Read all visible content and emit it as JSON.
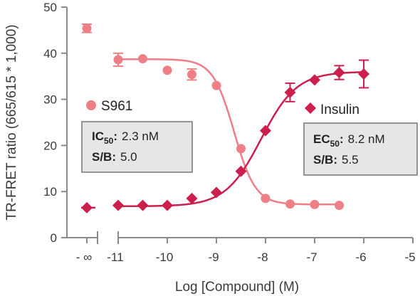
{
  "chart_data": {
    "type": "scatter",
    "xlabel": "Log [Compound] (M)",
    "ylabel": "TR-FRET ratio (665/615 * 1,000)",
    "xlim": [
      -11.7,
      -5
    ],
    "ylim": [
      0,
      50
    ],
    "x_ticks": [
      {
        "value": -11.5,
        "label": "- ∞"
      },
      {
        "value": -11,
        "label": "-11"
      },
      {
        "value": -10,
        "label": "-10"
      },
      {
        "value": -9,
        "label": "-9"
      },
      {
        "value": -8,
        "label": "-8"
      },
      {
        "value": -7,
        "label": "-7"
      },
      {
        "value": -6,
        "label": "-6"
      },
      {
        "value": -5,
        "label": "-5"
      }
    ],
    "y_ticks": [
      0,
      10,
      20,
      30,
      40,
      50
    ],
    "axis_break_after": -11.5,
    "series": [
      {
        "name": "S961",
        "marker": "circle",
        "color": "#ef7f86",
        "points": [
          {
            "x": "- ∞",
            "y": 45.4,
            "err": 0.9
          },
          {
            "x": -11,
            "y": 38.6,
            "err": 1.4
          },
          {
            "x": -10.5,
            "y": 38.8,
            "err": 0.0
          },
          {
            "x": -10,
            "y": 36.3,
            "err": 0.0
          },
          {
            "x": -9.5,
            "y": 35.4,
            "err": 1.2
          },
          {
            "x": -9,
            "y": 33.0,
            "err": 0.0
          },
          {
            "x": -8.5,
            "y": 19.3,
            "err": 0.0
          },
          {
            "x": -8,
            "y": 8.5,
            "err": 0.0
          },
          {
            "x": -7.5,
            "y": 7.3,
            "err": 0.0
          },
          {
            "x": -7,
            "y": 7.2,
            "err": 0.0
          },
          {
            "x": -6.5,
            "y": 7.0,
            "err": 0.0
          }
        ],
        "fit": {
          "bottom": 7.2,
          "top": 38.7,
          "log_ic50": -8.64,
          "hill": -2.0
        },
        "annotation": {
          "line1_prefix": "IC",
          "line1_sub": "50",
          "line1_sep": ":",
          "line1_value": "2.3 nM",
          "line2_label": "S/B:",
          "line2_value": "5.0"
        }
      },
      {
        "name": "Insulin",
        "marker": "diamond",
        "color": "#cc1f4e",
        "points": [
          {
            "x": "- ∞",
            "y": 6.5,
            "err": 0.0
          },
          {
            "x": -11,
            "y": 7.0,
            "err": 0.0
          },
          {
            "x": -10.5,
            "y": 7.0,
            "err": 0.0
          },
          {
            "x": -10,
            "y": 7.0,
            "err": 0.0
          },
          {
            "x": -9.5,
            "y": 8.5,
            "err": 0.0
          },
          {
            "x": -9,
            "y": 9.8,
            "err": 0.0
          },
          {
            "x": -8.5,
            "y": 14.4,
            "err": 0.0
          },
          {
            "x": -8,
            "y": 23.2,
            "err": 0.0
          },
          {
            "x": -7.5,
            "y": 31.5,
            "err": 2.0
          },
          {
            "x": -7,
            "y": 34.2,
            "err": 0.0
          },
          {
            "x": -6.5,
            "y": 35.8,
            "err": 1.5
          },
          {
            "x": -6,
            "y": 35.5,
            "err": 3.0
          }
        ],
        "fit": {
          "bottom": 6.8,
          "top": 36.0,
          "log_ec50": -8.09,
          "hill": 1.2
        },
        "annotation": {
          "line1_prefix": "EC",
          "line1_sub": "50",
          "line1_sep": ":",
          "line1_value": "8.2 nM",
          "line2_label": "S/B:",
          "line2_value": "5.5"
        }
      }
    ],
    "colors": {
      "axis": "#8a8a8a",
      "text": "#3a3a3a",
      "box_fill": "#e6e6e6",
      "box_stroke": "#777777"
    }
  }
}
